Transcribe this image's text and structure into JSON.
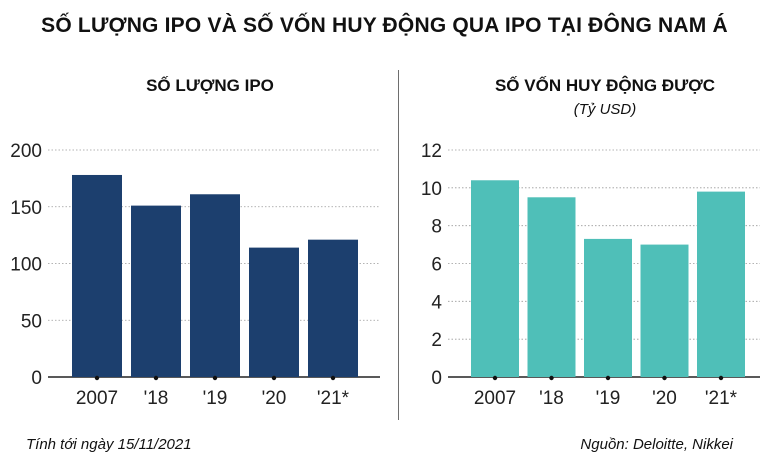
{
  "title": "SỐ LƯỢNG IPO VÀ SỐ VỐN HUY ĐỘNG  QUA IPO TẠI ĐÔNG NAM Á",
  "footer": {
    "note": "Tính tới ngày 15/11/2021",
    "source": "Nguồn: Deloitte, Nikkei"
  },
  "chart_data": [
    {
      "type": "bar",
      "title": "SỐ LƯỢNG IPO",
      "subtitle": "",
      "categories": [
        "2007",
        "'18",
        "'19",
        "'20",
        "'21*"
      ],
      "values": [
        178,
        151,
        161,
        114,
        121
      ],
      "ylim": [
        0,
        200
      ],
      "yticks": [
        0,
        50,
        100,
        150,
        200
      ],
      "xlabel": "",
      "ylabel": "",
      "color": "#1c3f6e",
      "grid": true
    },
    {
      "type": "bar",
      "title": "SỐ VỐN HUY ĐỘNG ĐƯỢC",
      "subtitle": "(Tỷ USD)",
      "categories": [
        "2007",
        "'18",
        "'19",
        "'20",
        "'21*"
      ],
      "values": [
        10.4,
        9.5,
        7.3,
        7.0,
        9.8
      ],
      "ylim": [
        0,
        12
      ],
      "yticks": [
        0,
        2,
        4,
        6,
        8,
        10,
        12
      ],
      "xlabel": "",
      "ylabel": "",
      "color": "#4fbfb8",
      "grid": true
    }
  ]
}
